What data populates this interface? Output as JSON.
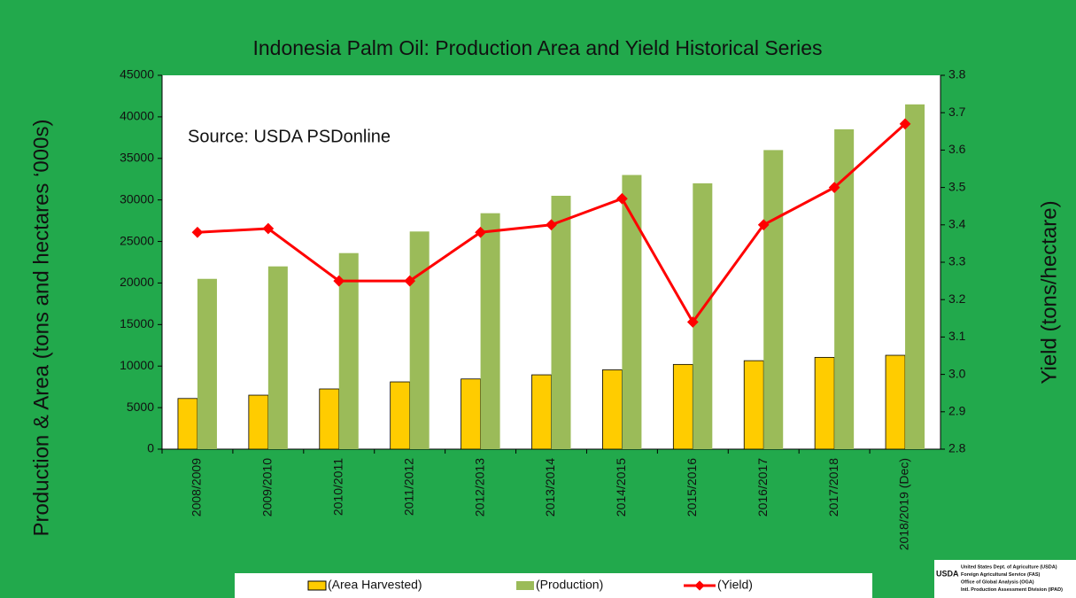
{
  "chart_data": {
    "type": "bar",
    "title": "Indonesia Palm Oil: Production Area and Yield Historical Series",
    "annotation": "Source: USDA PSDonline",
    "ylabel": "Production & Area (tons and hectares ‘000s)",
    "y2label": "Yield (tons/hectare)",
    "categories": [
      "2008/2009",
      "2009/2010",
      "2010/2011",
      "2011/2012",
      "2012/2013",
      "2013/2014",
      "2014/2015",
      "2015/2016",
      "2016/2017",
      "2017/2018",
      "2018/2019 (Dec)"
    ],
    "series": [
      {
        "name": "(Area Harvested)",
        "type": "bar",
        "color": "#ffcc00",
        "values": [
          6100,
          6500,
          7250,
          8100,
          8450,
          8950,
          9550,
          10200,
          10650,
          11050,
          11300
        ]
      },
      {
        "name": "(Production)",
        "type": "bar",
        "color": "#9bbb59",
        "values": [
          20500,
          22000,
          23600,
          26200,
          28400,
          30500,
          33000,
          32000,
          36000,
          38500,
          41500
        ]
      },
      {
        "name": "(Yield)",
        "type": "line",
        "axis": "y2",
        "color": "#ff0000",
        "values": [
          3.38,
          3.39,
          3.25,
          3.25,
          3.38,
          3.4,
          3.47,
          3.14,
          3.4,
          3.5,
          3.67
        ]
      }
    ],
    "ylim": [
      0,
      45000
    ],
    "yticks": [
      0,
      5000,
      10000,
      15000,
      20000,
      25000,
      30000,
      35000,
      40000,
      45000
    ],
    "y2lim": [
      2.8,
      3.8
    ],
    "y2ticks": [
      2.8,
      2.9,
      {
        "value": 3,
        "label": "3.0"
      },
      3.1,
      3.2,
      3.3,
      3.4,
      3.5,
      3.6,
      3.7,
      3.8
    ],
    "legend": "bottom",
    "logo": {
      "mark": "USDA",
      "lines": [
        "United States Dept. of Agriculture (USDA)",
        "Foreign Agricultural Service (FAS)",
        "Office of Global Analysis (OGA)",
        "Intl. Production Assessment Division (IPAD)"
      ]
    }
  }
}
